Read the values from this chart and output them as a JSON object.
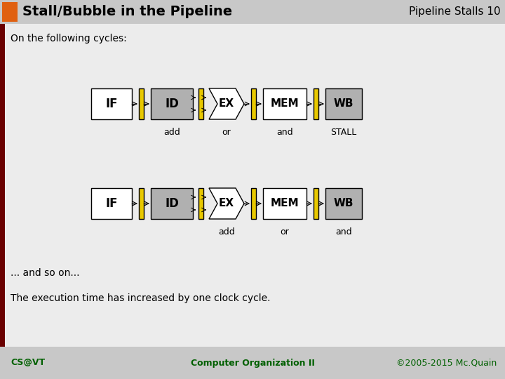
{
  "title_left": "Stall/Bubble in the Pipeline",
  "title_right": "Pipeline Stalls 10",
  "subtitle": "On the following cycles:",
  "bg_color": "#e8e8e8",
  "header_bg": "#c8c8c8",
  "orange_rect": "#e06010",
  "dark_red_left": "#6a0000",
  "yellow_color": "#e8c800",
  "white_box": "#ffffff",
  "gray_box": "#b0b0b0",
  "label1": [
    "add",
    "or",
    "and",
    "STALL"
  ],
  "label2": [
    "add",
    "or",
    "and"
  ],
  "and_so_on": "... and so on...",
  "exec_time": "The execution time has increased by one clock cycle.",
  "footer_left": "CS@VT",
  "footer_center": "Computer Organization II",
  "footer_right": "©2005-2015 Mc.Quain",
  "footer_color": "#006000",
  "content_bg": "#ececec",
  "footer_bg": "#c8c8c8"
}
